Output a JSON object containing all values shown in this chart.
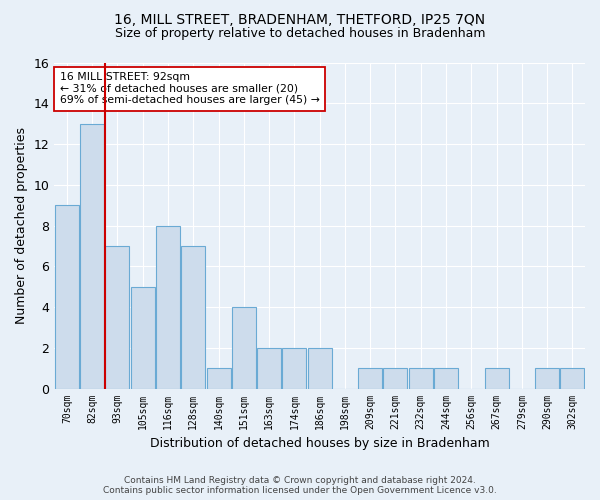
{
  "title": "16, MILL STREET, BRADENHAM, THETFORD, IP25 7QN",
  "subtitle": "Size of property relative to detached houses in Bradenham",
  "xlabel": "Distribution of detached houses by size in Bradenham",
  "ylabel": "Number of detached properties",
  "bin_labels": [
    "70sqm",
    "82sqm",
    "93sqm",
    "105sqm",
    "116sqm",
    "128sqm",
    "140sqm",
    "151sqm",
    "163sqm",
    "174sqm",
    "186sqm",
    "198sqm",
    "209sqm",
    "221sqm",
    "232sqm",
    "244sqm",
    "256sqm",
    "267sqm",
    "279sqm",
    "290sqm",
    "302sqm"
  ],
  "bar_heights": [
    9,
    13,
    7,
    5,
    8,
    7,
    1,
    4,
    2,
    2,
    2,
    0,
    1,
    1,
    1,
    1,
    0,
    1,
    0,
    1,
    1
  ],
  "bar_color": "#cddcec",
  "bar_edge_color": "#6aaad4",
  "subject_bar_index": 1,
  "subject_line_color": "#cc0000",
  "annotation_text": "16 MILL STREET: 92sqm\n← 31% of detached houses are smaller (20)\n69% of semi-detached houses are larger (45) →",
  "annotation_box_color": "#ffffff",
  "annotation_box_edge": "#cc0000",
  "footer_line1": "Contains HM Land Registry data © Crown copyright and database right 2024.",
  "footer_line2": "Contains public sector information licensed under the Open Government Licence v3.0.",
  "bg_color": "#e8f0f8",
  "plot_bg_color": "#e8f0f8",
  "ylim": [
    0,
    16
  ],
  "yticks": [
    0,
    2,
    4,
    6,
    8,
    10,
    12,
    14,
    16
  ],
  "grid_color": "#ffffff",
  "title_fontsize": 10,
  "subtitle_fontsize": 9
}
